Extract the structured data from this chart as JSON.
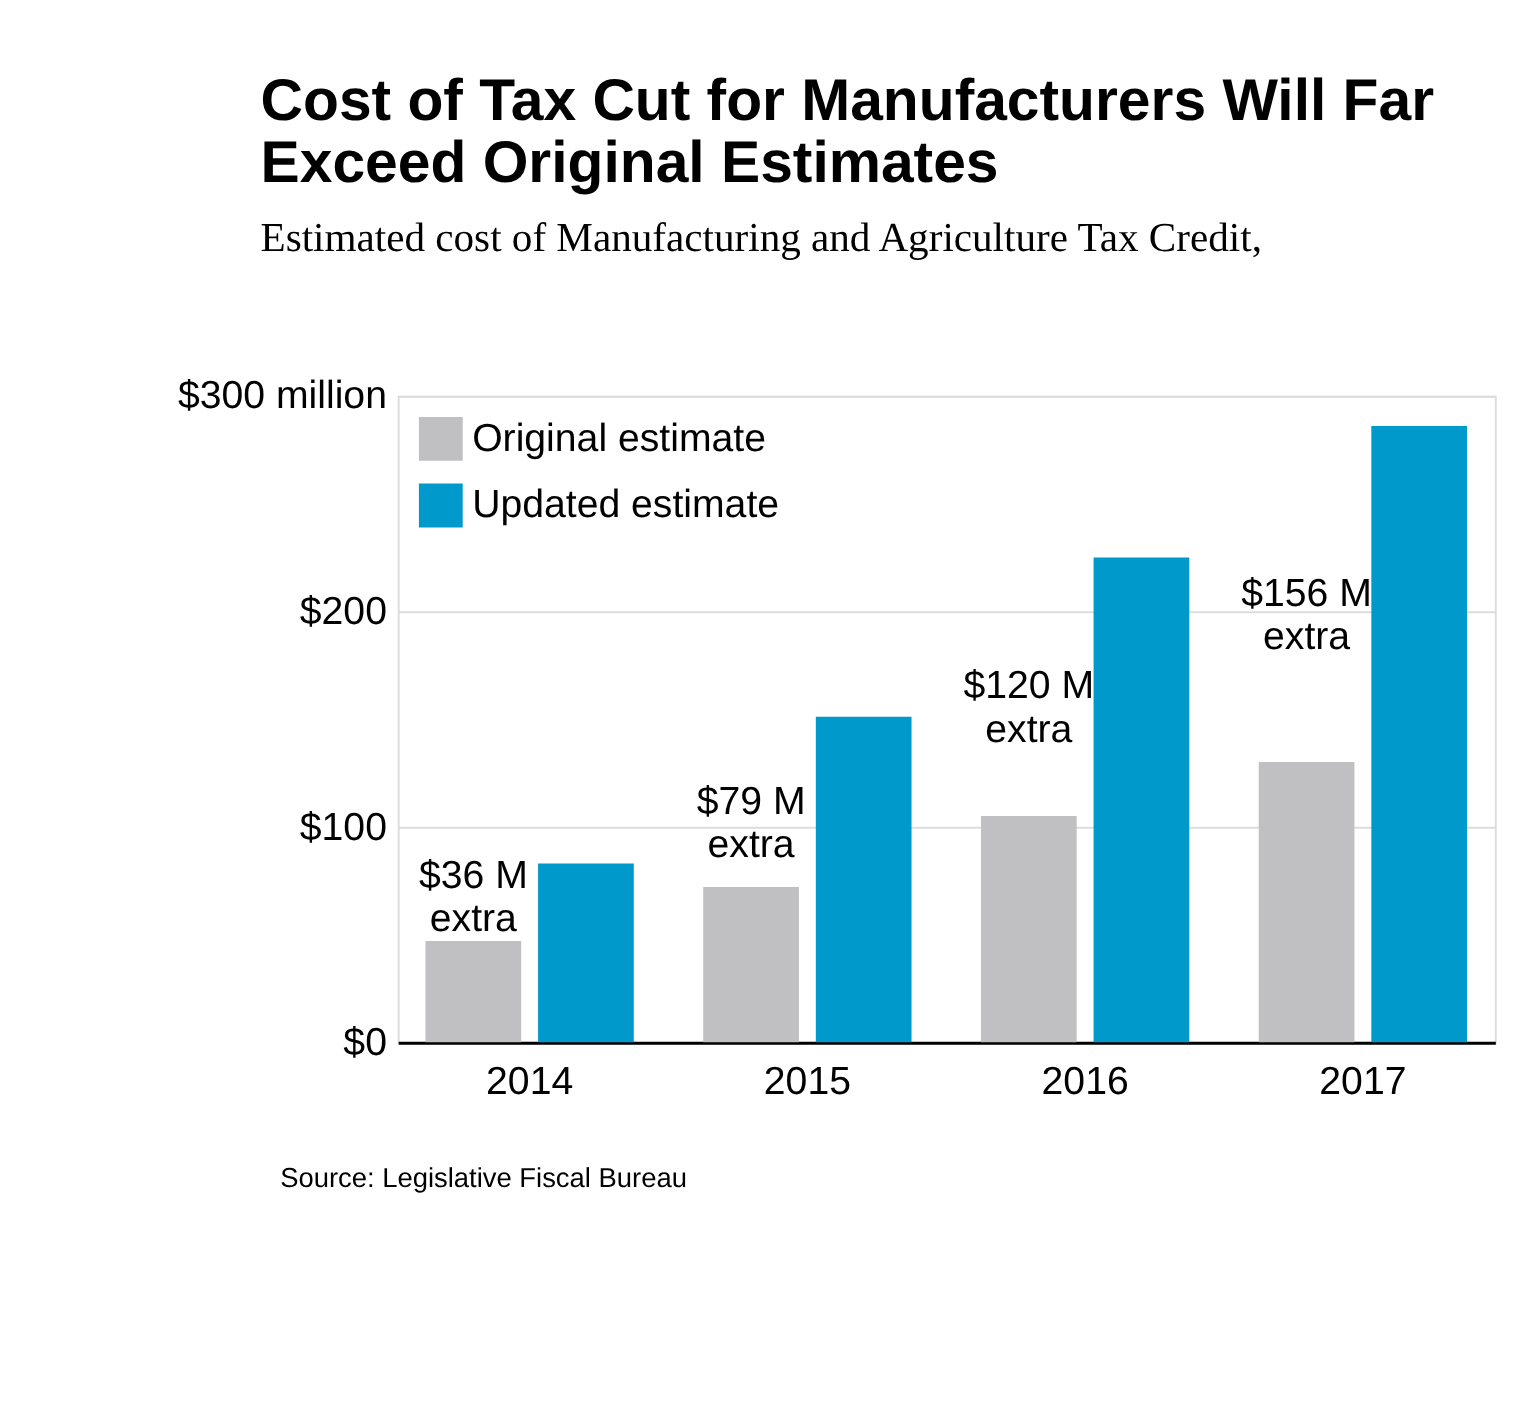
{
  "chart_data": {
    "type": "bar",
    "title": "Cost of Tax Cut for Manufacturers Will Far Exceed Original Estimates",
    "subtitle": "Estimated cost of Manufacturing and Agriculture Tax Credit,",
    "categories": [
      "2014",
      "2015",
      "2016",
      "2017"
    ],
    "series": [
      {
        "name": "Original estimate",
        "color": "#c0c0c2",
        "values": [
          47,
          72,
          105,
          130
        ]
      },
      {
        "name": "Updated estimate",
        "color": "#0099cc",
        "values": [
          83,
          151,
          225,
          286
        ]
      }
    ],
    "ylim": [
      0,
      300
    ],
    "yticks": [
      {
        "value": 0,
        "label": "$0"
      },
      {
        "value": 100,
        "label": "$100"
      },
      {
        "value": 200,
        "label": "$200"
      },
      {
        "value": 300,
        "label": "$300 million"
      }
    ],
    "grid": "y",
    "legend": "top left",
    "annotations": [
      {
        "text": "$36 M\nextra",
        "x": "2014"
      },
      {
        "text": "$79 M\nextra",
        "x": "2015"
      },
      {
        "text": "$120 M\nextra",
        "x": "2016"
      },
      {
        "text": "$156 M\nextra",
        "x": "2017"
      },
      "Source: Legislative Fiscal Bureau"
    ]
  }
}
